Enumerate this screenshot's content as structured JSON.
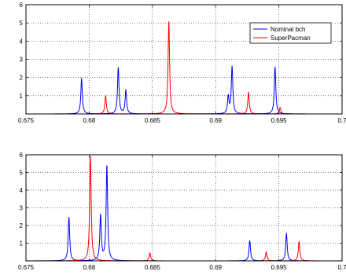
{
  "chart_data": [
    {
      "type": "line",
      "xlim": [
        0.675,
        0.7
      ],
      "ylim": [
        0,
        6
      ],
      "xticks": [
        0.675,
        0.68,
        0.685,
        0.69,
        0.695,
        0.7
      ],
      "xtick_labels": [
        "0.675",
        "0.68",
        "0.685",
        "0.69",
        "0.695",
        "0.7"
      ],
      "yticks": [
        1,
        2,
        3,
        4,
        5,
        6
      ],
      "ytick_labels": [
        "1",
        "2",
        "3",
        "4",
        "5",
        "6"
      ],
      "grid": true,
      "legend_position": "top-right",
      "series": [
        {
          "name": "Nominal bch",
          "color": "#0000ff",
          "peaks": [
            {
              "x": 0.6794,
              "y": 1.95
            },
            {
              "x": 0.6823,
              "y": 2.55
            },
            {
              "x": 0.6829,
              "y": 1.3
            },
            {
              "x": 0.691,
              "y": 0.95
            },
            {
              "x": 0.6913,
              "y": 2.6
            },
            {
              "x": 0.6947,
              "y": 2.6
            }
          ]
        },
        {
          "name": "SuperPacman",
          "color": "#ff0000",
          "peaks": [
            {
              "x": 0.6813,
              "y": 1.0
            },
            {
              "x": 0.6863,
              "y": 5.1
            },
            {
              "x": 0.6926,
              "y": 1.2
            },
            {
              "x": 0.6951,
              "y": 0.35
            }
          ]
        }
      ]
    },
    {
      "type": "line",
      "xlim": [
        0.675,
        0.7
      ],
      "ylim": [
        0,
        6
      ],
      "xticks": [
        0.675,
        0.68,
        0.685,
        0.69,
        0.695,
        0.7
      ],
      "xtick_labels": [
        "0.675",
        "0.68",
        "0.685",
        "0.69",
        "0.695",
        "0.7"
      ],
      "yticks": [
        1,
        2,
        3,
        4,
        5,
        6
      ],
      "ytick_labels": [
        "1",
        "2",
        "3",
        "4",
        "5",
        "6"
      ],
      "grid": true,
      "series": [
        {
          "color": "#0000ff",
          "peaks": [
            {
              "x": 0.6784,
              "y": 2.5
            },
            {
              "x": 0.6809,
              "y": 2.55
            },
            {
              "x": 0.6814,
              "y": 5.4
            },
            {
              "x": 0.6927,
              "y": 1.15
            },
            {
              "x": 0.6956,
              "y": 1.55
            }
          ]
        },
        {
          "color": "#ff0000",
          "peaks": [
            {
              "x": 0.6801,
              "y": 6.0
            },
            {
              "x": 0.6848,
              "y": 0.45
            },
            {
              "x": 0.694,
              "y": 0.5
            },
            {
              "x": 0.6966,
              "y": 1.1
            }
          ]
        }
      ]
    }
  ]
}
